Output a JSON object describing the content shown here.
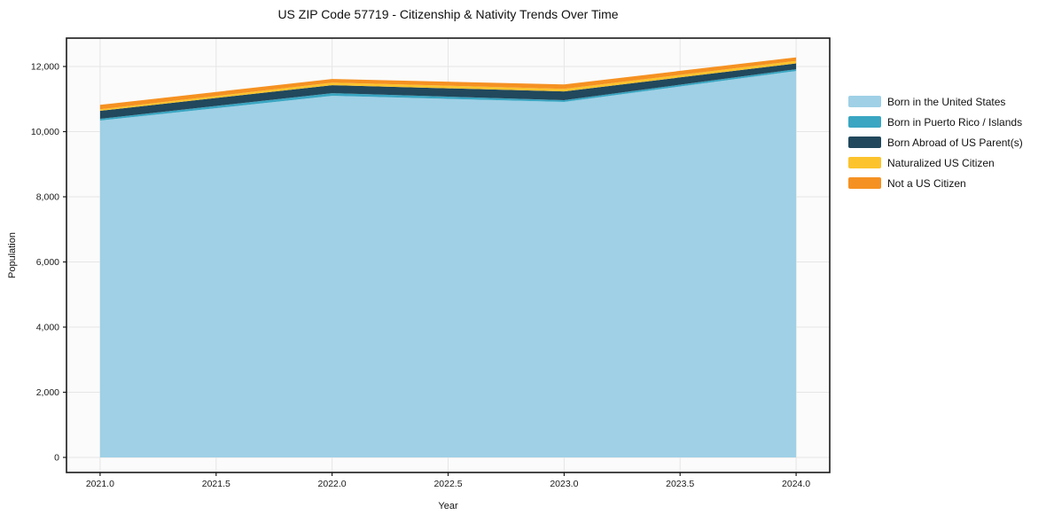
{
  "chart_data": {
    "type": "area",
    "stacked": true,
    "title": "US ZIP Code 57719 - Citizenship & Nativity Trends Over Time",
    "xlabel": "Year",
    "ylabel": "Population",
    "x": [
      2021,
      2022,
      2023,
      2024
    ],
    "series": [
      {
        "name": "Born in the United States",
        "color": "#9fd0e6",
        "values": [
          10340,
          11100,
          10910,
          11860
        ]
      },
      {
        "name": "Born in Puerto Rico / Islands",
        "color": "#3aa6c2",
        "values": [
          55,
          80,
          55,
          55
        ]
      },
      {
        "name": "Born Abroad of US Parent(s)",
        "color": "#21485c",
        "values": [
          245,
          245,
          270,
          180
        ]
      },
      {
        "name": "Naturalized US Citizen",
        "color": "#fcc32d",
        "values": [
          45,
          80,
          80,
          75
        ]
      },
      {
        "name": "Not a US Citizen",
        "color": "#f59122",
        "values": [
          135,
          110,
          135,
          110
        ]
      }
    ],
    "stack_totals": [
      10820,
      11615,
      11450,
      12280
    ],
    "xlim": [
      2020.855,
      2024.145
    ],
    "ylim": [
      -462,
      12870
    ],
    "xticks": {
      "values": [
        2021.0,
        2021.5,
        2022.0,
        2022.5,
        2023.0,
        2023.5,
        2024.0
      ],
      "labels": [
        "2021.0",
        "2021.5",
        "2022.0",
        "2022.5",
        "2023.0",
        "2023.5",
        "2024.0"
      ]
    },
    "yticks": {
      "values": [
        0,
        2000,
        4000,
        6000,
        8000,
        10000,
        12000
      ],
      "labels": [
        "0",
        "2,000",
        "4,000",
        "6,000",
        "8,000",
        "10,000",
        "12,000"
      ]
    },
    "grid": true,
    "legend_position": "right-of-plot"
  }
}
